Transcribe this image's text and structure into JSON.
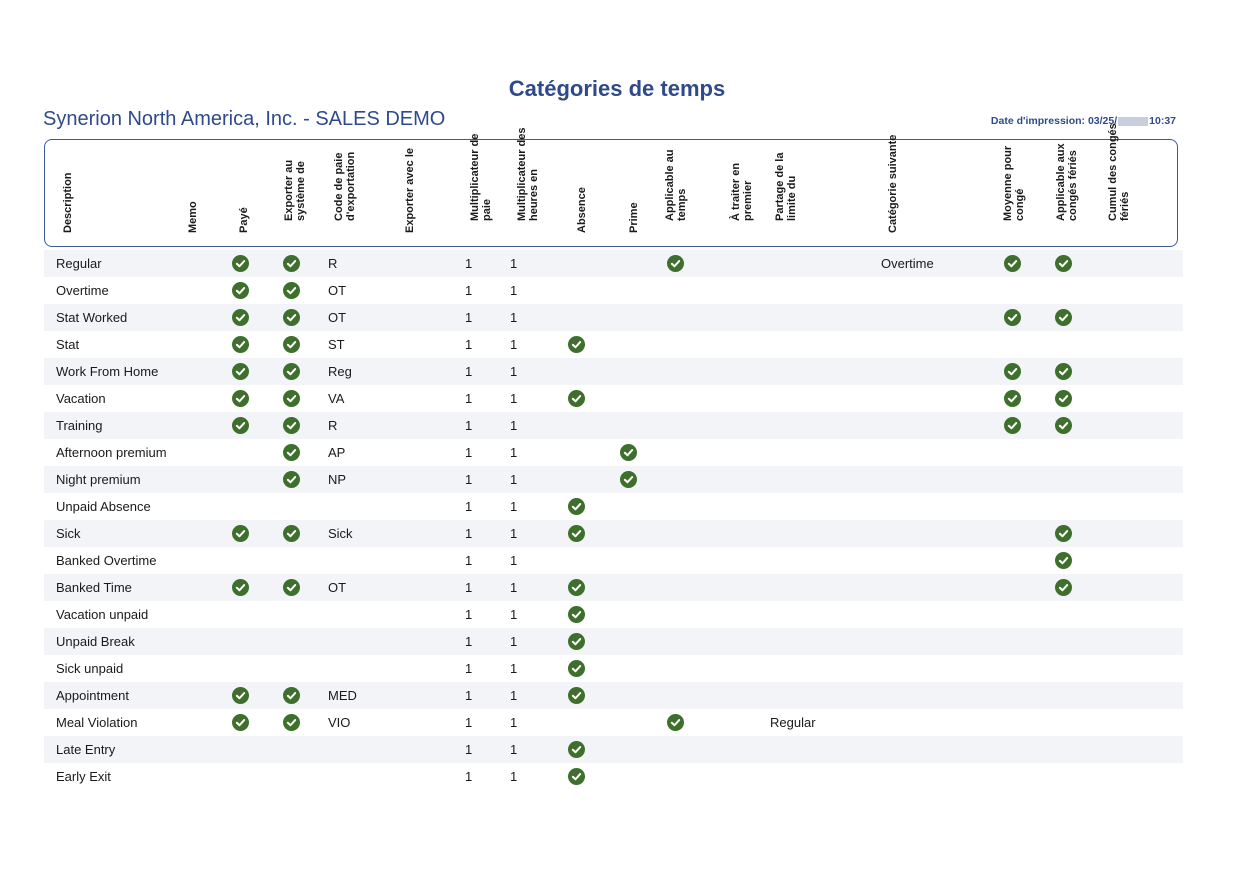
{
  "report": {
    "title": "Catégories de temps",
    "company": "Synerion North America, Inc. - SALES DEMO",
    "print_date_label": "Date d'impression: 03/25/",
    "print_time": "10:37"
  },
  "columns": [
    "Description",
    "Memo",
    "Payé",
    "Exporter au système de",
    "Code de paie d'exportation",
    "Exporter avec le",
    "Multiplicateur de paie",
    "Multiplicateur des heures en",
    "Absence",
    "Prime",
    "Applicable au temps",
    "À traiter en premier",
    "Partage de la limite du",
    "Catégorie suivante",
    "Moyenne pour congé",
    "Applicable aux congés fériés",
    "Cumul des congés fériés"
  ],
  "rows": [
    {
      "description": "Regular",
      "paye": true,
      "export": true,
      "code": "R",
      "mult_pay": "1",
      "mult_hours": "1",
      "absence": false,
      "prime": false,
      "applicable": true,
      "partage": "",
      "next": "Overtime",
      "moyenne": true,
      "feries": true
    },
    {
      "description": "Overtime",
      "paye": true,
      "export": true,
      "code": "OT",
      "mult_pay": "1",
      "mult_hours": "1",
      "absence": false,
      "prime": false,
      "applicable": false,
      "partage": "",
      "next": "",
      "moyenne": false,
      "feries": false
    },
    {
      "description": "Stat Worked",
      "paye": true,
      "export": true,
      "code": "OT",
      "mult_pay": "1",
      "mult_hours": "1",
      "absence": false,
      "prime": false,
      "applicable": false,
      "partage": "",
      "next": "",
      "moyenne": true,
      "feries": true
    },
    {
      "description": "Stat",
      "paye": true,
      "export": true,
      "code": "ST",
      "mult_pay": "1",
      "mult_hours": "1",
      "absence": true,
      "prime": false,
      "applicable": false,
      "partage": "",
      "next": "",
      "moyenne": false,
      "feries": false
    },
    {
      "description": "Work From Home",
      "paye": true,
      "export": true,
      "code": "Reg",
      "mult_pay": "1",
      "mult_hours": "1",
      "absence": false,
      "prime": false,
      "applicable": false,
      "partage": "",
      "next": "",
      "moyenne": true,
      "feries": true
    },
    {
      "description": "Vacation",
      "paye": true,
      "export": true,
      "code": "VA",
      "mult_pay": "1",
      "mult_hours": "1",
      "absence": true,
      "prime": false,
      "applicable": false,
      "partage": "",
      "next": "",
      "moyenne": true,
      "feries": true
    },
    {
      "description": "Training",
      "paye": true,
      "export": true,
      "code": "R",
      "mult_pay": "1",
      "mult_hours": "1",
      "absence": false,
      "prime": false,
      "applicable": false,
      "partage": "",
      "next": "",
      "moyenne": true,
      "feries": true
    },
    {
      "description": "Afternoon premium",
      "paye": false,
      "export": true,
      "code": "AP",
      "mult_pay": "1",
      "mult_hours": "1",
      "absence": false,
      "prime": true,
      "applicable": false,
      "partage": "",
      "next": "",
      "moyenne": false,
      "feries": false
    },
    {
      "description": "Night premium",
      "paye": false,
      "export": true,
      "code": "NP",
      "mult_pay": "1",
      "mult_hours": "1",
      "absence": false,
      "prime": true,
      "applicable": false,
      "partage": "",
      "next": "",
      "moyenne": false,
      "feries": false
    },
    {
      "description": "Unpaid Absence",
      "paye": false,
      "export": false,
      "code": "",
      "mult_pay": "1",
      "mult_hours": "1",
      "absence": true,
      "prime": false,
      "applicable": false,
      "partage": "",
      "next": "",
      "moyenne": false,
      "feries": false
    },
    {
      "description": "Sick",
      "paye": true,
      "export": true,
      "code": "Sick",
      "mult_pay": "1",
      "mult_hours": "1",
      "absence": true,
      "prime": false,
      "applicable": false,
      "partage": "",
      "next": "",
      "moyenne": false,
      "feries": true
    },
    {
      "description": "Banked Overtime",
      "paye": false,
      "export": false,
      "code": "",
      "mult_pay": "1",
      "mult_hours": "1",
      "absence": false,
      "prime": false,
      "applicable": false,
      "partage": "",
      "next": "",
      "moyenne": false,
      "feries": true
    },
    {
      "description": "Banked Time",
      "paye": true,
      "export": true,
      "code": "OT",
      "mult_pay": "1",
      "mult_hours": "1",
      "absence": true,
      "prime": false,
      "applicable": false,
      "partage": "",
      "next": "",
      "moyenne": false,
      "feries": true
    },
    {
      "description": "Vacation unpaid",
      "paye": false,
      "export": false,
      "code": "",
      "mult_pay": "1",
      "mult_hours": "1",
      "absence": true,
      "prime": false,
      "applicable": false,
      "partage": "",
      "next": "",
      "moyenne": false,
      "feries": false
    },
    {
      "description": "Unpaid Break",
      "paye": false,
      "export": false,
      "code": "",
      "mult_pay": "1",
      "mult_hours": "1",
      "absence": true,
      "prime": false,
      "applicable": false,
      "partage": "",
      "next": "",
      "moyenne": false,
      "feries": false
    },
    {
      "description": "Sick unpaid",
      "paye": false,
      "export": false,
      "code": "",
      "mult_pay": "1",
      "mult_hours": "1",
      "absence": true,
      "prime": false,
      "applicable": false,
      "partage": "",
      "next": "",
      "moyenne": false,
      "feries": false
    },
    {
      "description": "Appointment",
      "paye": true,
      "export": true,
      "code": "MED",
      "mult_pay": "1",
      "mult_hours": "1",
      "absence": true,
      "prime": false,
      "applicable": false,
      "partage": "",
      "next": "",
      "moyenne": false,
      "feries": false
    },
    {
      "description": "Meal Violation",
      "paye": true,
      "export": true,
      "code": "VIO",
      "mult_pay": "1",
      "mult_hours": "1",
      "absence": false,
      "prime": false,
      "applicable": true,
      "partage": "Regular",
      "next": "",
      "moyenne": false,
      "feries": false
    },
    {
      "description": "Late Entry",
      "paye": false,
      "export": false,
      "code": "",
      "mult_pay": "1",
      "mult_hours": "1",
      "absence": true,
      "prime": false,
      "applicable": false,
      "partage": "",
      "next": "",
      "moyenne": false,
      "feries": false
    },
    {
      "description": "Early Exit",
      "paye": false,
      "export": false,
      "code": "",
      "mult_pay": "1",
      "mult_hours": "1",
      "absence": true,
      "prime": false,
      "applicable": false,
      "partage": "",
      "next": "",
      "moyenne": false,
      "feries": false
    }
  ],
  "colors": {
    "title": "#2f4a8a",
    "check": "#3f6f2c",
    "row_alt": "#f2f4f8"
  },
  "icons": {
    "check": "check-circle-icon"
  }
}
